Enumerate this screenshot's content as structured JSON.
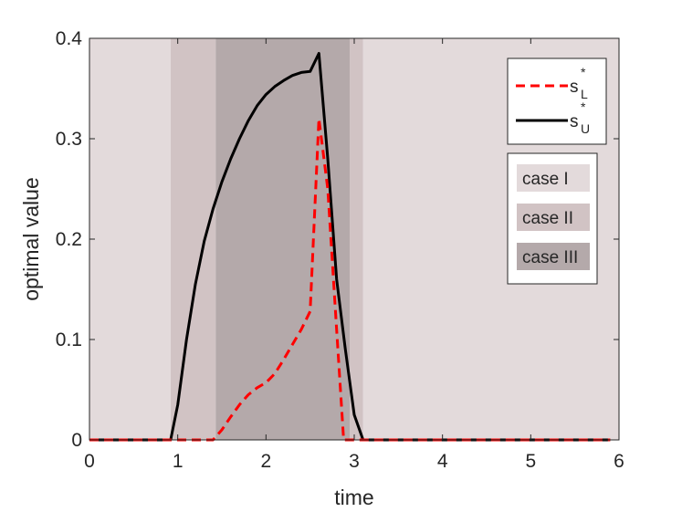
{
  "chart_data": {
    "type": "line",
    "xlabel": "time",
    "ylabel": "optimal value",
    "xlim": [
      0,
      6
    ],
    "ylim": [
      0,
      0.4
    ],
    "x_ticks": [
      0,
      1,
      2,
      3,
      4,
      5,
      6
    ],
    "x_tick_labels": [
      "0",
      "1",
      "2",
      "3",
      "4",
      "5",
      "6"
    ],
    "y_ticks": [
      0,
      0.1,
      0.2,
      0.3,
      0.4
    ],
    "y_tick_labels": [
      "0",
      "0.1",
      "0.2",
      "0.3",
      "0.4"
    ],
    "grid": false,
    "background_regions": [
      {
        "label": "case I",
        "color": "#e3dadb",
        "ranges": [
          [
            0,
            0.92
          ],
          [
            3.1,
            6
          ]
        ]
      },
      {
        "label": "case II",
        "color": "#d1c3c4",
        "ranges": [
          [
            0.92,
            1.43
          ],
          [
            2.95,
            3.1
          ]
        ]
      },
      {
        "label": "case III",
        "color": "#b4a9aa",
        "ranges": [
          [
            1.43,
            2.95
          ]
        ]
      }
    ],
    "series": [
      {
        "name_base": "s",
        "name_sup": "*",
        "name_sub": "L",
        "color": "#ff0000",
        "dash": "dashed",
        "x": [
          0,
          0.92,
          1.4,
          1.5,
          1.6,
          1.7,
          1.8,
          1.9,
          2.0,
          2.1,
          2.2,
          2.3,
          2.4,
          2.5,
          2.6,
          2.7,
          2.8,
          2.88,
          2.9,
          5.9
        ],
        "y": [
          0,
          0,
          0,
          0.01,
          0.023,
          0.035,
          0.045,
          0.052,
          0.057,
          0.066,
          0.08,
          0.095,
          0.11,
          0.128,
          0.32,
          0.25,
          0.11,
          0,
          0,
          0
        ]
      },
      {
        "name_base": "s",
        "name_sup": "*",
        "name_sub": "U",
        "color": "#000000",
        "dash": "solid",
        "x": [
          0,
          0.92,
          1.0,
          1.1,
          1.2,
          1.3,
          1.4,
          1.5,
          1.6,
          1.7,
          1.8,
          1.9,
          2.0,
          2.1,
          2.2,
          2.3,
          2.4,
          2.5,
          2.6,
          2.7,
          2.8,
          2.9,
          3.0,
          3.1,
          5.9
        ],
        "y": [
          0,
          0,
          0.035,
          0.1,
          0.155,
          0.198,
          0.23,
          0.257,
          0.28,
          0.3,
          0.318,
          0.333,
          0.344,
          0.352,
          0.358,
          0.363,
          0.366,
          0.367,
          0.385,
          0.28,
          0.16,
          0.09,
          0.025,
          0,
          0
        ]
      }
    ]
  }
}
